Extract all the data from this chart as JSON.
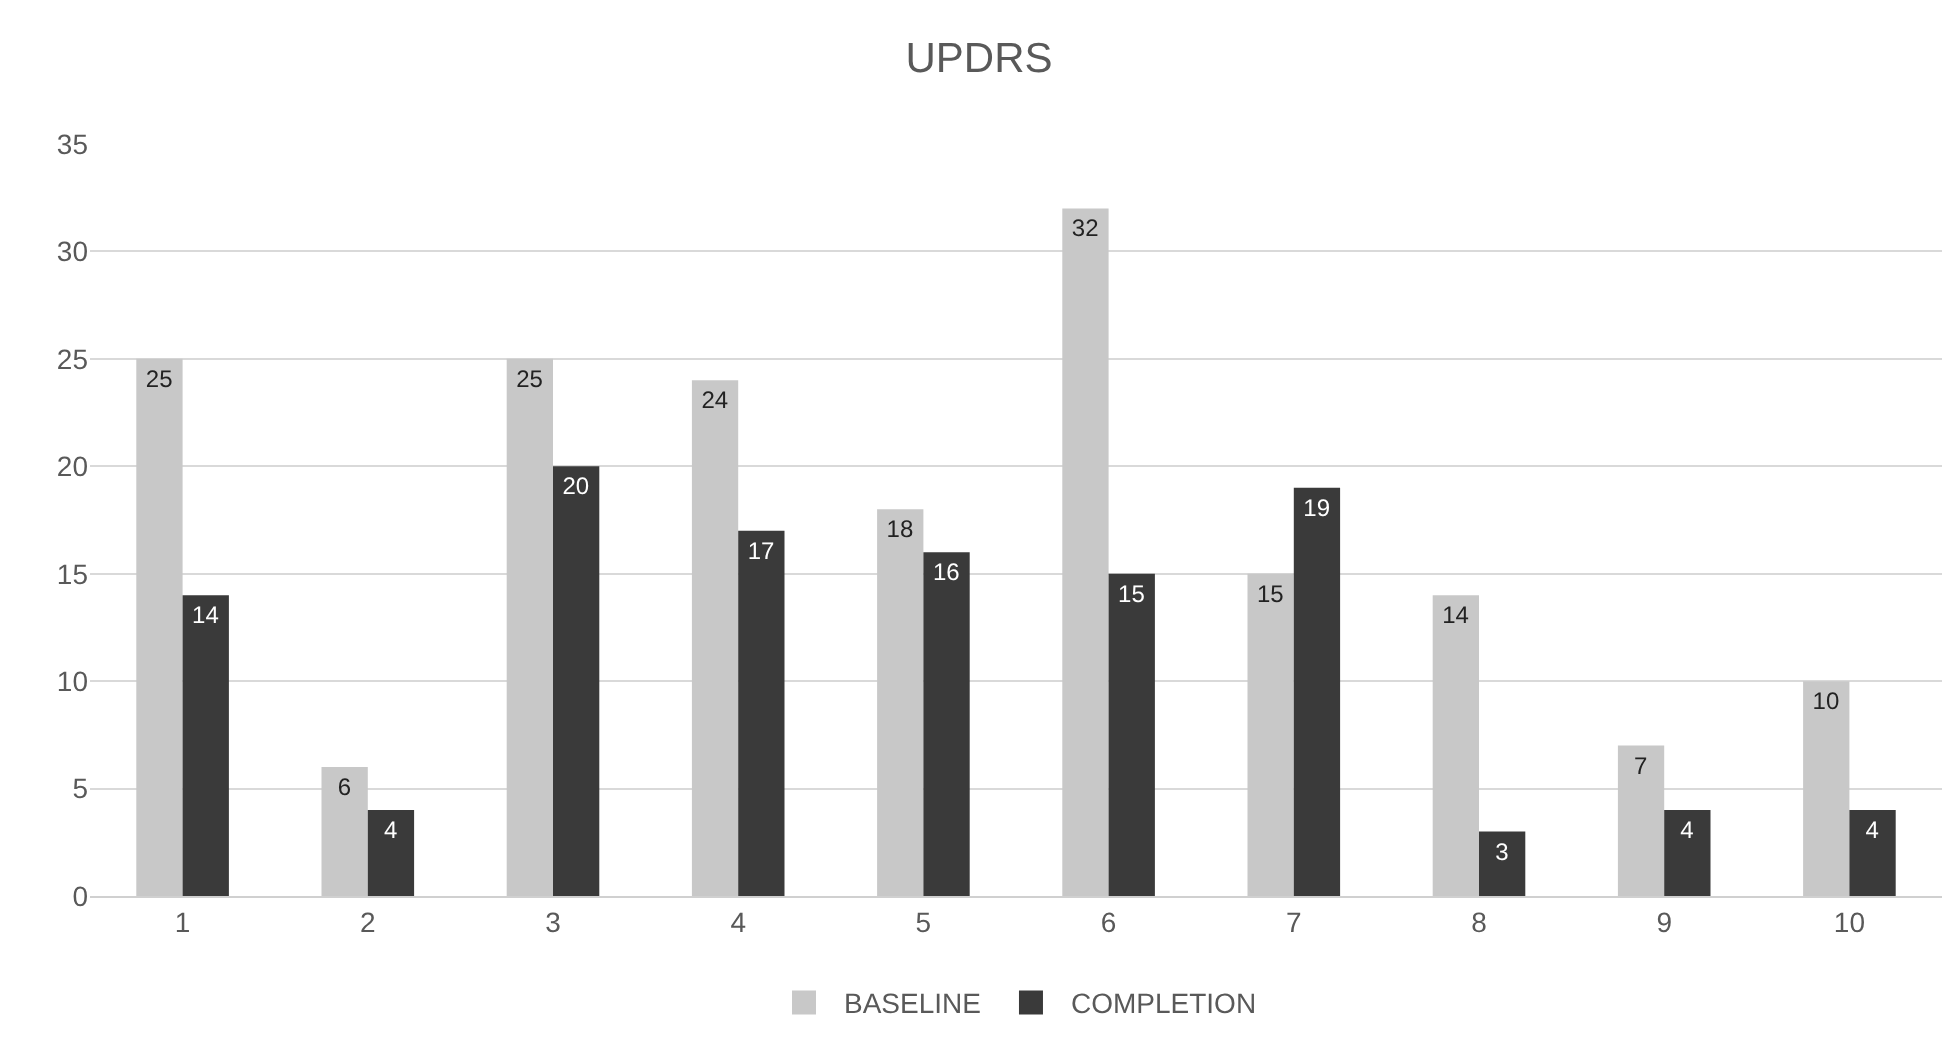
{
  "chart_data": {
    "type": "bar",
    "title": "UPDRS",
    "categories": [
      "1",
      "2",
      "3",
      "4",
      "5",
      "6",
      "7",
      "8",
      "9",
      "10"
    ],
    "series": [
      {
        "name": "BASELINE",
        "color": "#c8c8c8",
        "values": [
          25,
          6,
          25,
          24,
          18,
          32,
          15,
          14,
          7,
          10
        ]
      },
      {
        "name": "COMPLETION",
        "color": "#3a3a3a",
        "values": [
          14,
          4,
          20,
          17,
          16,
          15,
          19,
          3,
          4,
          4
        ]
      }
    ],
    "ylim": [
      0,
      35
    ],
    "yticks": [
      0,
      5,
      10,
      15,
      20,
      25,
      30,
      35
    ],
    "grid": "y",
    "legend": "bottom",
    "data_labels": true
  }
}
